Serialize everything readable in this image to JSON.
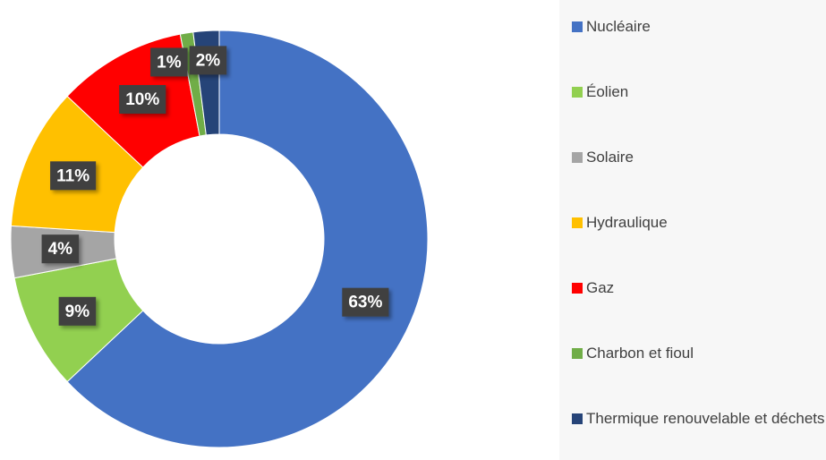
{
  "chart_data": {
    "type": "donut",
    "categories": [
      "Nucléaire",
      "Éolien",
      "Solaire",
      "Hydraulique",
      "Gaz",
      "Charbon et fioul",
      "Thermique renouvelable et déchets"
    ],
    "values": [
      63,
      9,
      4,
      11,
      10,
      1,
      2
    ],
    "value_labels": [
      "63%",
      "9%",
      "4%",
      "11%",
      "10%",
      "1%",
      "2%"
    ],
    "colors": [
      "#4472c4",
      "#92d050",
      "#a5a5a5",
      "#ffc000",
      "#ff0000",
      "#70ad47",
      "#264478"
    ],
    "legend": "right"
  }
}
